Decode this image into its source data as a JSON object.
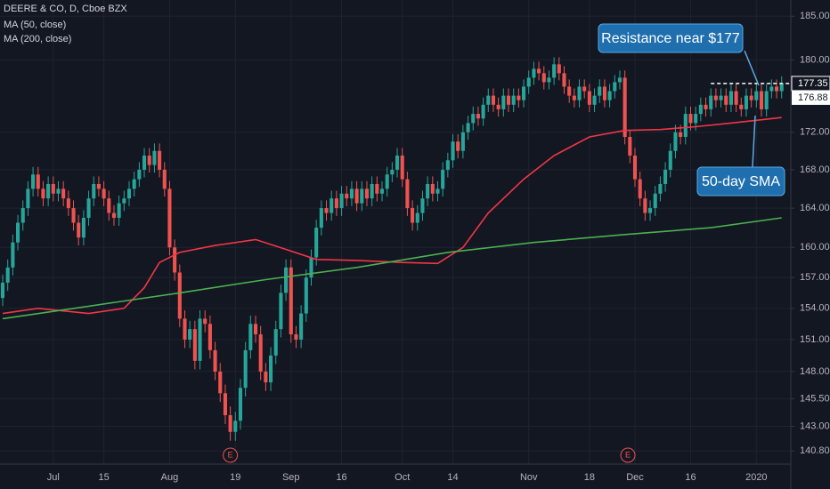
{
  "chart_data": {
    "type": "candlestick",
    "legend": [
      "DEERE & CO, D, Cboe BZX",
      "MA (50, close)",
      "MA (200, close)"
    ],
    "up_color": "#26a69a",
    "down_color": "#ef5350",
    "ylim": [
      139.8,
      186.9
    ],
    "log_scale": true,
    "yticks": [
      {
        "value": 185,
        "label": "185.00"
      },
      {
        "value": 180,
        "label": "180.00"
      },
      {
        "value": 172,
        "label": "172.00"
      },
      {
        "value": 168,
        "label": "168.00"
      },
      {
        "value": 164,
        "label": "164.00"
      },
      {
        "value": 160,
        "label": "160.00"
      },
      {
        "value": 157,
        "label": "157.00"
      },
      {
        "value": 154,
        "label": "154.00"
      },
      {
        "value": 151,
        "label": "151.00"
      },
      {
        "value": 148,
        "label": "148.00"
      },
      {
        "value": 145.5,
        "label": "145.50"
      },
      {
        "value": 143,
        "label": "143.00"
      },
      {
        "value": 140.8,
        "label": "140.80"
      }
    ],
    "xlim": [
      -0.53,
      154.4
    ],
    "xticks": [
      {
        "value": 10,
        "label": "Jul"
      },
      {
        "value": 20,
        "label": "15"
      },
      {
        "value": 33,
        "label": "Aug"
      },
      {
        "value": 46,
        "label": "19"
      },
      {
        "value": 57,
        "label": "Sep"
      },
      {
        "value": 67,
        "label": "16"
      },
      {
        "value": 79,
        "label": "Oct"
      },
      {
        "value": 89,
        "label": "14"
      },
      {
        "value": 104,
        "label": "Nov"
      },
      {
        "value": 116,
        "label": "18"
      },
      {
        "value": 125,
        "label": "Dec"
      },
      {
        "value": 136,
        "label": "16"
      },
      {
        "value": 149,
        "label": "2020"
      }
    ],
    "grid": true,
    "open": [
      155,
      156.5,
      158,
      160.5,
      162.5,
      164,
      166,
      167.5,
      166,
      165,
      166.5,
      165.5,
      166,
      165,
      164,
      162.5,
      161,
      163,
      165,
      166.5,
      166,
      165,
      163.5,
      163,
      164.5,
      165,
      166,
      167,
      168,
      169.5,
      168.5,
      170,
      168,
      166,
      160,
      157.5,
      153,
      151,
      152,
      149,
      153,
      152.5,
      150,
      148,
      146,
      144,
      142.5,
      143.5,
      146.5,
      150,
      152.5,
      151.5,
      148,
      147,
      149.5,
      152,
      155.5,
      158,
      151.5,
      151,
      153.5,
      157,
      159,
      162,
      164,
      163.5,
      165,
      164,
      165.5,
      165,
      166,
      164.5,
      166,
      165,
      166.5,
      165.5,
      166,
      167.5,
      168,
      169.5,
      167,
      164,
      162.5,
      163.5,
      165,
      166.5,
      165.5,
      166,
      168,
      169,
      171,
      170,
      172,
      173,
      174,
      173.5,
      175,
      176,
      175,
      174.5,
      176,
      175,
      176,
      175.5,
      177,
      178,
      179,
      178.5,
      177.5,
      178,
      179.5,
      178.5,
      177,
      176,
      175.5,
      177,
      176.5,
      175,
      176,
      177,
      175.5,
      176.5,
      177.5,
      178,
      171.5,
      169.5,
      167,
      165,
      163.5,
      164,
      165.5,
      166.5,
      168,
      170,
      172,
      171.5,
      174,
      173,
      174,
      175,
      174.5,
      176,
      175.5,
      176,
      175,
      176.5,
      175,
      174.5,
      176,
      175.5,
      176.5,
      174.5,
      176.5,
      177,
      176.5
    ],
    "high": [
      157.3,
      158.8,
      161.3,
      163.3,
      164.8,
      166.8,
      168.3,
      168.3,
      166.8,
      167.3,
      167.3,
      166.8,
      166.8,
      165.8,
      164.8,
      163.3,
      163.8,
      165.8,
      167.3,
      167.3,
      166.8,
      165.8,
      164.3,
      165.3,
      165.8,
      166.8,
      167.8,
      168.8,
      170.3,
      170.3,
      170.8,
      170.8,
      168.8,
      166.8,
      160.8,
      158.3,
      153.8,
      152.8,
      152.8,
      153.8,
      153.8,
      153.3,
      150.8,
      148.8,
      146.8,
      144.8,
      144.3,
      147.3,
      150.8,
      153.3,
      153.3,
      152.3,
      148.8,
      150.3,
      152.8,
      156.3,
      158.8,
      158.8,
      152.3,
      154.3,
      157.8,
      159.8,
      162.8,
      164.8,
      164.8,
      165.8,
      165.8,
      166.3,
      166.3,
      166.8,
      166.8,
      166.8,
      166.8,
      167.3,
      167.3,
      166.8,
      168.3,
      168.8,
      170.3,
      170.3,
      167.8,
      164.8,
      164.3,
      165.8,
      167.3,
      167.3,
      166.8,
      168.8,
      169.8,
      171.8,
      171.8,
      172.8,
      173.8,
      174.8,
      174.8,
      175.8,
      176.8,
      176.8,
      175.8,
      176.8,
      176.8,
      176.8,
      176.8,
      177.8,
      178.8,
      179.8,
      179.8,
      179.3,
      178.8,
      180.3,
      180.3,
      179.3,
      177.8,
      176.8,
      177.8,
      177.8,
      177.3,
      176.8,
      177.8,
      177.8,
      177.3,
      178.3,
      178.8,
      178.8,
      172.3,
      170.3,
      167.8,
      165.8,
      164.8,
      166.3,
      167.3,
      168.8,
      170.8,
      172.8,
      172.8,
      174.8,
      174.8,
      174.8,
      175.8,
      175.8,
      176.8,
      176.8,
      176.8,
      176.8,
      177.3,
      177.3,
      175.8,
      176.8,
      176.8,
      177.3,
      177.3,
      177.3,
      177.8,
      177.8,
      178.15
    ],
    "low": [
      154.2,
      155.7,
      157.2,
      159.7,
      161.7,
      163.2,
      165.2,
      165.2,
      164.2,
      164.2,
      164.7,
      164.7,
      164.2,
      163.2,
      161.7,
      160.2,
      160.2,
      162.2,
      164.2,
      165.2,
      164.2,
      162.7,
      162.2,
      162.2,
      163.7,
      164.2,
      165.2,
      166.2,
      167.2,
      167.7,
      167.7,
      167.2,
      165.2,
      159.2,
      156.7,
      152.2,
      150.2,
      150.2,
      148.2,
      148.2,
      151.7,
      149.2,
      147.2,
      145.2,
      143.2,
      141.7,
      141.7,
      142.7,
      145.7,
      149.2,
      150.7,
      147.2,
      146.2,
      146.2,
      148.7,
      151.2,
      154.7,
      150.7,
      150.2,
      150.2,
      152.7,
      156.2,
      158.2,
      161.2,
      162.7,
      162.7,
      163.2,
      163.2,
      164.2,
      164.2,
      163.7,
      163.7,
      164.2,
      164.2,
      164.7,
      164.7,
      165.2,
      166.7,
      167.2,
      166.2,
      163.2,
      161.7,
      161.7,
      162.7,
      164.2,
      164.7,
      164.7,
      165.2,
      167.2,
      168.2,
      169.2,
      169.2,
      171.2,
      172.2,
      172.7,
      172.7,
      174.2,
      174.2,
      173.7,
      173.7,
      174.2,
      174.2,
      174.7,
      174.7,
      176.2,
      177.2,
      177.7,
      176.7,
      176.7,
      177.2,
      177.7,
      176.2,
      175.2,
      174.7,
      174.7,
      175.7,
      174.2,
      174.2,
      175.2,
      174.7,
      174.7,
      175.7,
      176.7,
      170.7,
      168.7,
      166.2,
      164.2,
      162.7,
      162.7,
      163.2,
      164.7,
      165.7,
      167.2,
      169.2,
      170.7,
      170.7,
      172.2,
      172.2,
      173.2,
      173.7,
      173.7,
      174.7,
      174.7,
      174.2,
      174.2,
      174.2,
      173.7,
      173.7,
      174.7,
      174.7,
      173.7,
      173.7,
      175.7,
      175.7,
      175.7
    ],
    "close": [
      156.5,
      158,
      160.5,
      162.5,
      164,
      166,
      167.5,
      166,
      165,
      166.5,
      165.5,
      166,
      165,
      164,
      162.5,
      161,
      163,
      165,
      166.5,
      166,
      165,
      163.5,
      163,
      164.5,
      165,
      166,
      167,
      168,
      169.5,
      168.5,
      170,
      168,
      166,
      160,
      157.5,
      153,
      151,
      152,
      149,
      153,
      152.5,
      150,
      148,
      146,
      144,
      142.5,
      143.5,
      146.5,
      150,
      152.5,
      151.5,
      148,
      147,
      149.5,
      152,
      155.5,
      158,
      151.5,
      151,
      153.5,
      157,
      159,
      162,
      164,
      163.5,
      165,
      164,
      165.5,
      165,
      166,
      164.5,
      166,
      165,
      166.5,
      165.5,
      166,
      167.5,
      168,
      169.5,
      167,
      164,
      162.5,
      163.5,
      165,
      166.5,
      165.5,
      166,
      168,
      169,
      171,
      170,
      172,
      173,
      174,
      173.5,
      175,
      176,
      175,
      174.5,
      176,
      175,
      176,
      175.5,
      177,
      178,
      179,
      178.5,
      177.5,
      178,
      179.5,
      178.5,
      177,
      176,
      175.5,
      177,
      176.5,
      175,
      176,
      177,
      175.5,
      176.5,
      177.5,
      178,
      171.5,
      169.5,
      167,
      165,
      163.5,
      164,
      165.5,
      166.5,
      168,
      170,
      172,
      171.5,
      174,
      173,
      174,
      175,
      174.5,
      176,
      175.5,
      176,
      175,
      176.5,
      175,
      174.5,
      176,
      175.5,
      176.5,
      174.5,
      176.5,
      177,
      176.5,
      177.35
    ],
    "series": [
      {
        "name": "MA (50, close)",
        "color": "#f23645",
        "x": [
          0,
          7,
          17,
          24,
          28,
          31,
          35,
          42,
          50,
          56,
          62,
          70,
          79,
          86,
          91,
          96,
          103,
          109,
          116,
          123,
          130,
          137,
          144,
          154
        ],
        "values": [
          153.5,
          154,
          153.5,
          154,
          156,
          158.5,
          159.5,
          160.2,
          160.8,
          159.8,
          158.8,
          158.7,
          158.5,
          158.4,
          160,
          163.5,
          167,
          169.5,
          171.5,
          172.2,
          172.3,
          172.6,
          173,
          173.6
        ]
      },
      {
        "name": "MA (200, close)",
        "color": "#4caf50",
        "x": [
          0,
          17,
          35,
          52,
          70,
          88,
          105,
          123,
          140,
          154
        ],
        "values": [
          153,
          154.2,
          155.5,
          156.8,
          158,
          159.5,
          160.5,
          161.3,
          162,
          163
        ]
      }
    ],
    "earnings": [
      {
        "x": 45,
        "label": "E"
      },
      {
        "x": 123.6,
        "label": "E"
      }
    ],
    "resistance_level": 177.35,
    "resistance_from": 140,
    "second_price_label": 176.88,
    "annotations": [
      "Resistance near $177",
      "50-day SMA"
    ]
  }
}
